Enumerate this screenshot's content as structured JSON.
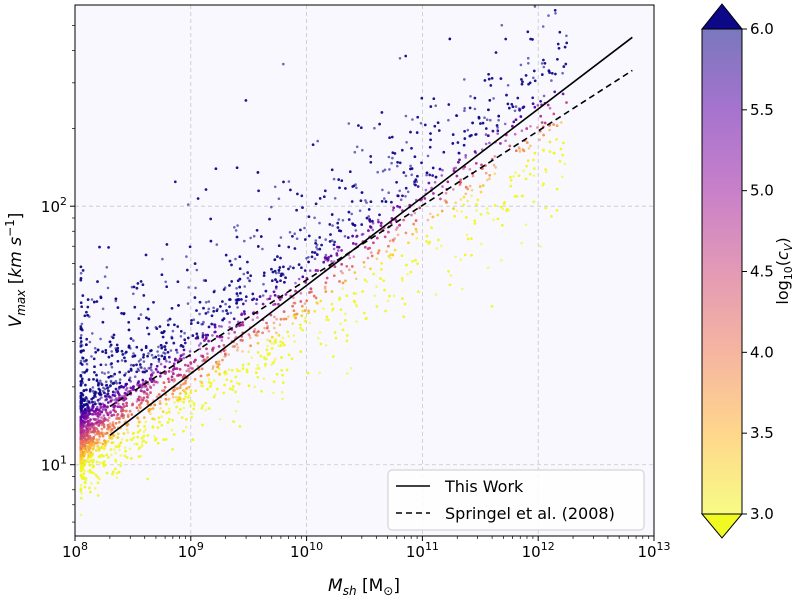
{
  "chart_data": {
    "type": "scatter",
    "title": "",
    "x_scale": "log",
    "y_scale": "log",
    "xlim": [
      100000000.0,
      10000000000000.0
    ],
    "ylim": [
      5.3,
      600
    ],
    "xlabel": {
      "main": "M",
      "sub": "sh",
      "unit_open": " [M",
      "unit_sub": "⊙",
      "unit_close": "]"
    },
    "ylabel": {
      "main": "V",
      "sub": "max",
      "unit_open": " [",
      "unit_italic": "km s",
      "unit_sup": "−1",
      "unit_close": "]"
    },
    "x_ticks": [
      {
        "value": 100000000.0,
        "base": "10",
        "exp": "8"
      },
      {
        "value": 1000000000.0,
        "base": "10",
        "exp": "9"
      },
      {
        "value": 10000000000.0,
        "base": "10",
        "exp": "10"
      },
      {
        "value": 100000000000.0,
        "base": "10",
        "exp": "11"
      },
      {
        "value": 1000000000000.0,
        "base": "10",
        "exp": "12"
      },
      {
        "value": 10000000000000.0,
        "base": "10",
        "exp": "13"
      }
    ],
    "y_ticks": [
      {
        "value": 10,
        "base": "10",
        "exp": "1"
      },
      {
        "value": 100,
        "base": "10",
        "exp": "2"
      }
    ],
    "grid": true,
    "legend_position": "lower-right",
    "series": [
      {
        "name": "This Work",
        "style": "solid",
        "color": "#000000",
        "x": [
          200000000.0,
          6500000000000.0
        ],
        "y": [
          13.0,
          450
        ]
      },
      {
        "name": "Springel et al. (2008)",
        "style": "dashed",
        "color": "#000000",
        "x": [
          200000000.0,
          6500000000000.0
        ],
        "y": [
          16.8,
          335
        ]
      }
    ],
    "scatter_cloud": {
      "colormap": "plasma_r",
      "alpha": 0.6,
      "x_range": [
        100000000.0,
        10000000000000.0
      ],
      "y_range": [
        6.5,
        520
      ],
      "median_relation": {
        "x": [
          100000000.0,
          1000000000.0,
          10000000000.0,
          100000000000.0,
          1000000000000.0
        ],
        "y": [
          12,
          23,
          45,
          95,
          200
        ]
      },
      "color_value_range": [
        3.0,
        6.0
      ]
    },
    "colorbar": {
      "label_main": "log",
      "label_sub": "10",
      "label_open": "(",
      "label_var": "c",
      "label_var_sub": "V",
      "label_close": ")",
      "range": [
        3.0,
        6.0
      ],
      "ticks": [
        "3.0",
        "3.5",
        "4.0",
        "4.5",
        "5.0",
        "5.5",
        "6.0"
      ],
      "extend": "both",
      "colors": [
        "#f0f921",
        "#fdb42f",
        "#ed7953",
        "#cc4778",
        "#9c179e",
        "#5c01a6",
        "#0d0887"
      ]
    },
    "colors": {
      "plot_background": "#f8f8fe",
      "grid": "#c8c8c8"
    }
  }
}
